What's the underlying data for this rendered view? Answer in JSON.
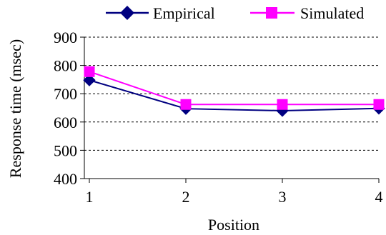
{
  "chart_data": {
    "type": "line",
    "categories": [
      "1",
      "2",
      "3",
      "4"
    ],
    "series": [
      {
        "name": "Empirical",
        "values": [
          748,
          647,
          640,
          648
        ]
      },
      {
        "name": "Simulated",
        "values": [
          778,
          662,
          662,
          662
        ]
      }
    ],
    "xlabel": "Position",
    "ylabel": "Response time (msec)",
    "ylim": [
      400,
      900
    ],
    "yticks": [
      400,
      500,
      600,
      700,
      800,
      900
    ],
    "yticks_labels": [
      "400",
      "500",
      "600",
      "700",
      "800",
      "900"
    ],
    "grid": "horizontal dashed",
    "legend_position": "top"
  },
  "colors": {
    "empirical": "#000080",
    "simulated": "#FF00FF",
    "grid": "#000000",
    "axis": "#000000"
  },
  "markers": {
    "empirical": "diamond",
    "simulated": "square"
  }
}
